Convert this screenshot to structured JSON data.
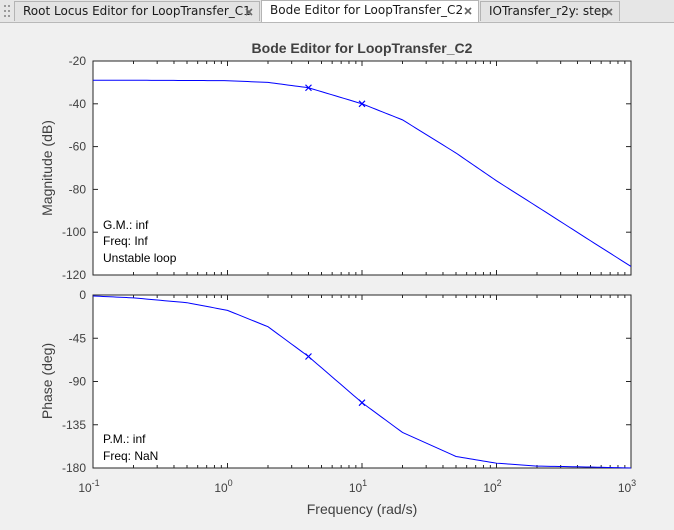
{
  "tabs": [
    {
      "label": "Root Locus Editor for LoopTransfer_C1",
      "active": false
    },
    {
      "label": "Bode Editor for LoopTransfer_C2",
      "active": true
    },
    {
      "label": "IOTransfer_r2y: step",
      "active": false
    }
  ],
  "figure": {
    "title": "Bode Editor for LoopTransfer_C2",
    "xlabel": "Frequency (rad/s)",
    "x_tick_bases": [
      "10",
      "10",
      "10",
      "10",
      "10"
    ],
    "x_tick_exponents": [
      "-1",
      "0",
      "1",
      "2",
      "3"
    ]
  },
  "magnitude": {
    "ylabel": "Magnitude (dB)",
    "y_ticks": [
      "-20",
      "-40",
      "-60",
      "-80",
      "-100",
      "-120"
    ],
    "annotations": [
      "G.M.: inf",
      "Freq: Inf",
      "Unstable loop"
    ]
  },
  "phase": {
    "ylabel": "Phase (deg)",
    "y_ticks": [
      "0",
      "-45",
      "-90",
      "-135",
      "-180"
    ],
    "annotations": [
      "P.M.: inf",
      "Freq: NaN"
    ]
  },
  "chart_data": [
    {
      "type": "line",
      "title": "Bode Editor for LoopTransfer_C2",
      "xlabel": "Frequency (rad/s)",
      "ylabel": "Magnitude (dB)",
      "x_scale": "log",
      "xlim": [
        0.1,
        1000
      ],
      "ylim": [
        -120,
        -20
      ],
      "grid": false,
      "series": [
        {
          "color": "#0000ff",
          "x": [
            0.1,
            0.2,
            0.5,
            1,
            2,
            4,
            10,
            20,
            50,
            100,
            200,
            500,
            1000
          ],
          "y": [
            -29,
            -29,
            -29.1,
            -29.2,
            -30,
            -32.5,
            -40,
            -47.5,
            -63,
            -76,
            -88,
            -104,
            -116
          ]
        }
      ],
      "markers": [
        {
          "x": 4,
          "y": -32.5,
          "symbol": "x"
        },
        {
          "x": 10,
          "y": -40,
          "symbol": "x"
        }
      ]
    },
    {
      "type": "line",
      "xlabel": "Frequency (rad/s)",
      "ylabel": "Phase (deg)",
      "x_scale": "log",
      "xlim": [
        0.1,
        1000
      ],
      "ylim": [
        -180,
        0
      ],
      "grid": false,
      "series": [
        {
          "color": "#0000ff",
          "x": [
            0.1,
            0.2,
            0.5,
            1,
            2,
            4,
            10,
            20,
            50,
            100,
            200,
            500,
            1000
          ],
          "y": [
            -1,
            -3,
            -8,
            -16,
            -33,
            -64,
            -112,
            -143,
            -168,
            -175,
            -178,
            -179,
            -180
          ]
        }
      ],
      "markers": [
        {
          "x": 4,
          "y": -64,
          "symbol": "x"
        },
        {
          "x": 10,
          "y": -112,
          "symbol": "x"
        }
      ]
    }
  ],
  "colors": {
    "line": "#0000ff",
    "axes": "#262626",
    "label": "#404040"
  },
  "icons": {
    "tab_close": "close-icon",
    "tab_grip": "grip-icon"
  }
}
